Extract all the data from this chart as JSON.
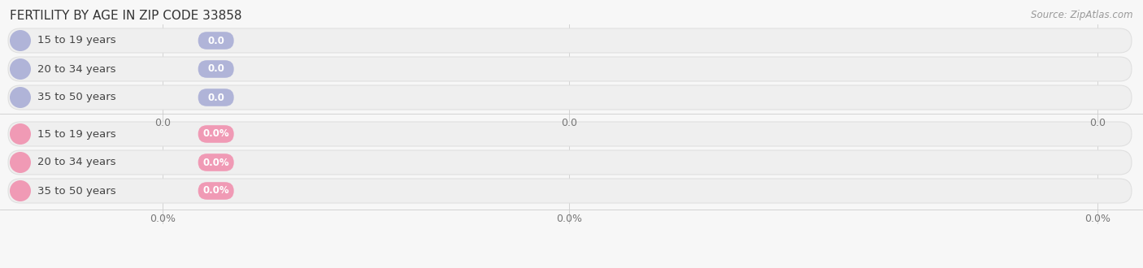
{
  "title": "FERTILITY BY AGE IN ZIP CODE 33858",
  "source": "Source: ZipAtlas.com",
  "top_group": {
    "labels": [
      "15 to 19 years",
      "20 to 34 years",
      "35 to 50 years"
    ],
    "values": [
      "0.0",
      "0.0",
      "0.0"
    ],
    "dot_color": "#b0b4d8",
    "badge_color": "#b0b4d8",
    "badge_text_color": "#ffffff"
  },
  "bottom_group": {
    "labels": [
      "15 to 19 years",
      "20 to 34 years",
      "35 to 50 years"
    ],
    "values": [
      "0.0%",
      "0.0%",
      "0.0%"
    ],
    "dot_color": "#f09ab5",
    "badge_color": "#f09ab5",
    "badge_text_color": "#ffffff"
  },
  "top_xtick_labels": [
    "0.0",
    "0.0",
    "0.0"
  ],
  "bottom_xtick_labels": [
    "0.0%",
    "0.0%",
    "0.0%"
  ],
  "background_color": "#f7f7f7",
  "bar_bg_color": "#efefef",
  "bar_border_color": "#e0e0e0",
  "title_fontsize": 11,
  "source_fontsize": 8.5,
  "label_fontsize": 9.5,
  "value_fontsize": 8.5,
  "tick_fontsize": 9
}
